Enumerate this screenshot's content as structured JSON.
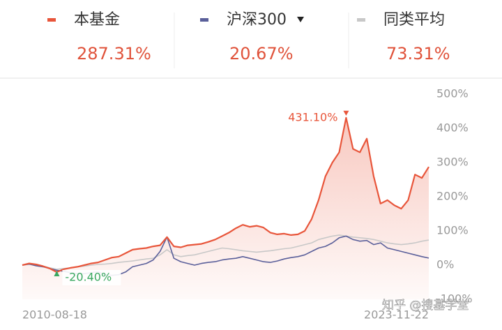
{
  "chart_data": {
    "type": "line",
    "categories": [
      "2010-08-18",
      null,
      null,
      null,
      null,
      null,
      null,
      null,
      null,
      null,
      null,
      null,
      null,
      null,
      null,
      null,
      null,
      null,
      null,
      null,
      null,
      null,
      null,
      null,
      null,
      null,
      null,
      null,
      null,
      null,
      null,
      null,
      null,
      null,
      null,
      null,
      null,
      null,
      null,
      null,
      null,
      null,
      null,
      null,
      null,
      null,
      null,
      null,
      null,
      null,
      null,
      null,
      null,
      null,
      null,
      null,
      null,
      null,
      null,
      "2023-11-22"
    ],
    "series": [
      {
        "name": "本基金",
        "color": "#e8553a",
        "return": 287.31,
        "return_label": "287.31%",
        "values": [
          0,
          5,
          2,
          -3,
          -10,
          -20.4,
          -12,
          -8,
          -5,
          0,
          5,
          8,
          15,
          22,
          25,
          35,
          45,
          48,
          50,
          55,
          58,
          82,
          55,
          52,
          58,
          60,
          62,
          68,
          75,
          85,
          95,
          108,
          118,
          112,
          115,
          110,
          95,
          90,
          92,
          88,
          90,
          100,
          135,
          190,
          260,
          300,
          330,
          431.1,
          340,
          330,
          370,
          260,
          180,
          190,
          175,
          165,
          190,
          265,
          255,
          287.31
        ]
      },
      {
        "name": "沪深300",
        "color": "#5a5f9a",
        "return": 20.67,
        "return_label": "20.67%",
        "values": [
          0,
          3,
          -2,
          -5,
          -10,
          -15,
          -18,
          -22,
          -25,
          -25,
          -22,
          -20,
          -28,
          -30,
          -28,
          -20,
          -5,
          0,
          5,
          15,
          40,
          82,
          20,
          10,
          5,
          0,
          5,
          8,
          10,
          15,
          18,
          20,
          25,
          20,
          15,
          10,
          8,
          12,
          18,
          22,
          25,
          30,
          40,
          50,
          55,
          65,
          80,
          85,
          75,
          70,
          72,
          60,
          65,
          50,
          45,
          40,
          35,
          30,
          25,
          20.67
        ]
      },
      {
        "name": "同类平均",
        "color": "#c8c8c8",
        "return": 73.31,
        "return_label": "73.31%",
        "values": [
          0,
          2,
          0,
          -3,
          -8,
          -12,
          -10,
          -8,
          -5,
          -3,
          0,
          2,
          3,
          5,
          8,
          10,
          12,
          15,
          18,
          20,
          30,
          45,
          30,
          25,
          28,
          30,
          35,
          40,
          45,
          50,
          48,
          45,
          42,
          40,
          38,
          40,
          42,
          45,
          48,
          50,
          55,
          60,
          65,
          75,
          80,
          85,
          88,
          85,
          82,
          80,
          78,
          75,
          70,
          65,
          62,
          60,
          62,
          65,
          70,
          73.31
        ]
      }
    ],
    "annotations": [
      {
        "label": "431.10%",
        "value": 431.1,
        "color": "#e8553a"
      },
      {
        "label": "-20.40%",
        "value": -20.4,
        "color": "#3aa860"
      }
    ],
    "ylim": [
      -100,
      500
    ],
    "yticks": [
      {
        "value": 500,
        "label": "500%"
      },
      {
        "value": 400,
        "label": "400%"
      },
      {
        "value": 300,
        "label": "300%"
      },
      {
        "value": 200,
        "label": "200%"
      },
      {
        "value": 100,
        "label": "100%"
      },
      {
        "value": 0,
        "label": "0%"
      },
      {
        "value": -100,
        "label": "-100%"
      }
    ],
    "grid": false,
    "watermark": "知乎 @搜基学堂"
  }
}
